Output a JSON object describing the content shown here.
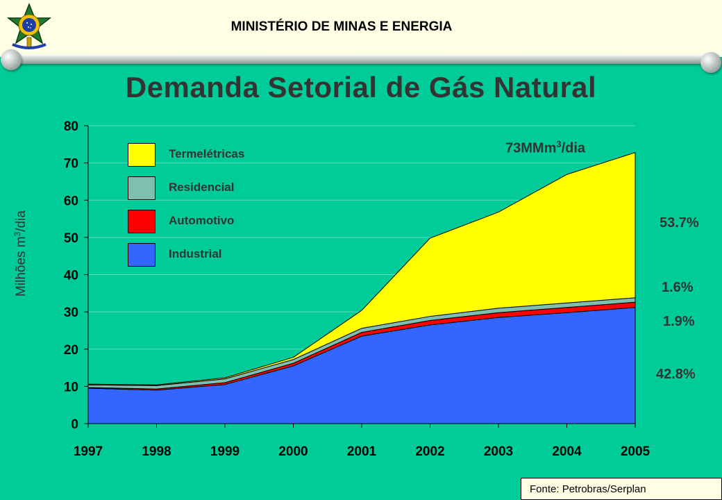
{
  "header": {
    "ministry": "MINISTÉRIO DE MINAS E ENERGIA"
  },
  "colors": {
    "background": "#00CC99",
    "header_bg": "#FFFFE6",
    "industrial": "#3366FF",
    "automotivo": "#FF0000",
    "residencial": "#7FBFAF",
    "termeletricas": "#FFFF00",
    "text": "#333333"
  },
  "chart_data": {
    "type": "area",
    "stacked": true,
    "title": "Demanda Setorial de Gás Natural",
    "ylabel_main": "Milhões m",
    "ylabel_sup": "3",
    "ylabel_tail": "/dia",
    "xlabel": "",
    "x": [
      "1997",
      "1998",
      "1999",
      "2000",
      "2001",
      "2002",
      "2003",
      "2004",
      "2005"
    ],
    "ylim": [
      0,
      80
    ],
    "yticks": [
      "0",
      "10",
      "20",
      "30",
      "40",
      "50",
      "60",
      "70",
      "80"
    ],
    "grid": true,
    "legend_position": "top-left",
    "series": [
      {
        "name": "Industrial",
        "color": "#3366FF",
        "values": [
          9.5,
          9.0,
          10.5,
          15.5,
          23.5,
          26.5,
          28.5,
          29.8,
          31.2
        ]
      },
      {
        "name": "Automotivo",
        "color": "#FF0000",
        "values": [
          0.2,
          0.3,
          0.5,
          0.7,
          1.0,
          1.2,
          1.3,
          1.4,
          1.4
        ]
      },
      {
        "name": "Residencial",
        "color": "#7FBFAF",
        "values": [
          0.7,
          0.9,
          1.0,
          1.0,
          1.1,
          1.1,
          1.2,
          1.2,
          1.2
        ]
      },
      {
        "name": "Termelétricas",
        "color": "#FFFF00",
        "values": [
          0.2,
          0.2,
          0.3,
          0.6,
          4.8,
          21.0,
          25.8,
          34.5,
          39.0
        ]
      }
    ],
    "legend_order": [
      "Termelétricas",
      "Residencial",
      "Automotivo",
      "Industrial"
    ],
    "annotations": {
      "total_main": "73MMm",
      "total_sup": "3",
      "total_tail": "/dia",
      "shares": [
        {
          "series": "Termelétricas",
          "label": "53.7%"
        },
        {
          "series": "Residencial",
          "label": "1.6%"
        },
        {
          "series": "Automotivo",
          "label": "1.9%"
        },
        {
          "series": "Industrial",
          "label": "42.8%"
        }
      ]
    }
  },
  "source": "Fonte: Petrobras/Serplan"
}
